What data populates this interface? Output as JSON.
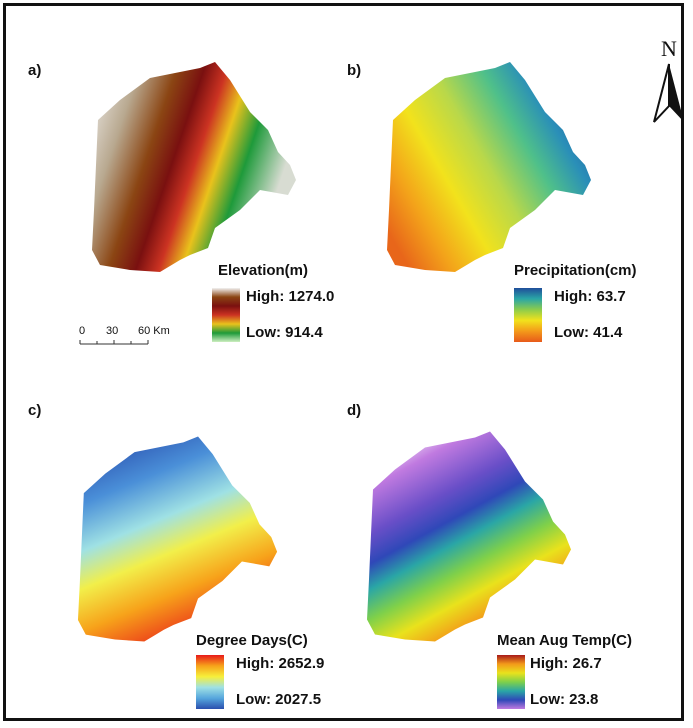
{
  "panels": [
    {
      "label": "a)",
      "legend_title": "Elevation(m)",
      "high": "High: 1274.0",
      "low": "Low: 914.4",
      "colors": [
        "#f2f2f2",
        "#8b4513",
        "#7a1010",
        "#cc3322",
        "#e9c21c",
        "#1e9a3a",
        "#cdeec0"
      ]
    },
    {
      "label": "b)",
      "legend_title": "Precipitation(cm)",
      "high": "High: 63.7",
      "low": "Low: 41.4",
      "colors": [
        "#1f4e9a",
        "#2aa6a6",
        "#8ccc4c",
        "#f2e21c",
        "#f39a1a",
        "#e85a1a"
      ]
    },
    {
      "label": "c)",
      "legend_title": "Degree Days(C)",
      "high": "High: 2652.9",
      "low": "Low: 2027.5",
      "colors": [
        "#e81a1a",
        "#f7a21a",
        "#f7ef3a",
        "#9fe1e4",
        "#56a6dd",
        "#2a4fae"
      ]
    },
    {
      "label": "d)",
      "legend_title": "Mean Aug Temp(C)",
      "high": "High: 26.7",
      "low": "Low: 23.8",
      "colors": [
        "#a81a1a",
        "#f39a1a",
        "#e9e21c",
        "#7fd04a",
        "#2aa6a6",
        "#2f48b8",
        "#c07ae0"
      ]
    }
  ],
  "north_arrow": {
    "letter": "N",
    "icon": "north-arrow-icon"
  },
  "scale_bar": {
    "ticks": [
      "0",
      "30",
      "60 Km"
    ]
  }
}
